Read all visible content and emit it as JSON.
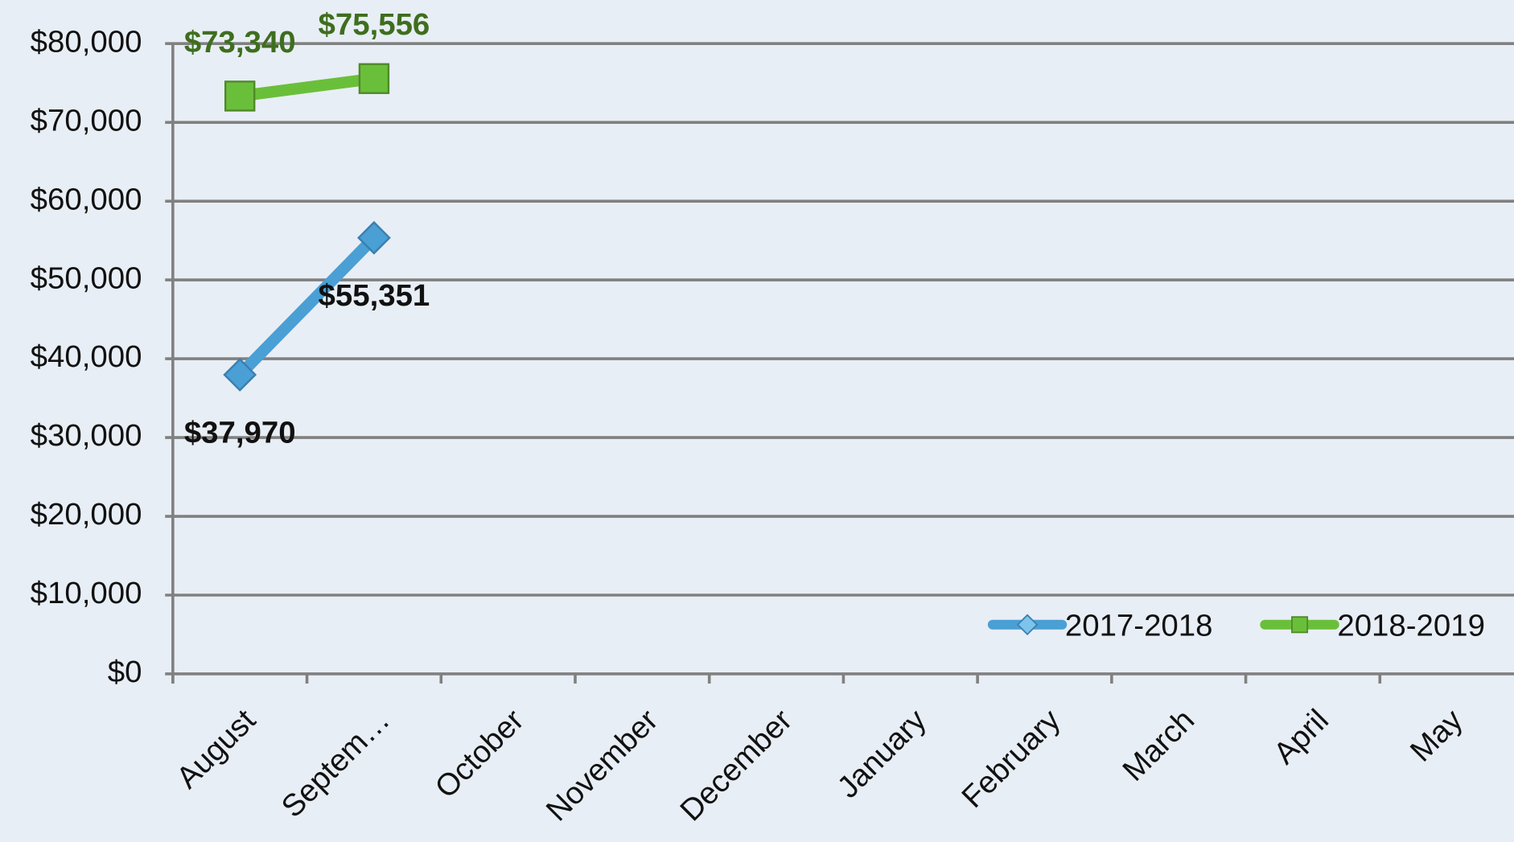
{
  "chart_data": {
    "type": "line",
    "categories": [
      "August",
      "Septem…",
      "October",
      "November",
      "December",
      "January",
      "February",
      "March",
      "April",
      "May"
    ],
    "series": [
      {
        "name": "2017-2018",
        "color": "#4a9fd4",
        "marker": "diamond",
        "label_color": "#111111",
        "label_position": "below",
        "values": [
          37970,
          55351,
          null,
          null,
          null,
          null,
          null,
          null,
          null,
          null
        ],
        "value_labels": [
          "$37,970",
          "$55,351",
          null,
          null,
          null,
          null,
          null,
          null,
          null,
          null
        ]
      },
      {
        "name": "2018-2019",
        "color": "#6abf3a",
        "marker": "square",
        "label_color": "#3e6e1e",
        "label_position": "above",
        "values": [
          73340,
          75556,
          null,
          null,
          null,
          null,
          null,
          null,
          null,
          null
        ],
        "value_labels": [
          "$73,340",
          "$75,556",
          null,
          null,
          null,
          null,
          null,
          null,
          null,
          null
        ]
      }
    ],
    "ylim": [
      0,
      80000
    ],
    "yticks": [
      {
        "value": 0,
        "label": "$0"
      },
      {
        "value": 10000,
        "label": "$10,000"
      },
      {
        "value": 20000,
        "label": "$20,000"
      },
      {
        "value": 30000,
        "label": "$30,000"
      },
      {
        "value": 40000,
        "label": "$40,000"
      },
      {
        "value": 50000,
        "label": "$50,000"
      },
      {
        "value": 60000,
        "label": "$60,000"
      },
      {
        "value": 70000,
        "label": "$70,000"
      },
      {
        "value": 80000,
        "label": "$80,000"
      }
    ],
    "grid": true,
    "legend": "lower right"
  }
}
